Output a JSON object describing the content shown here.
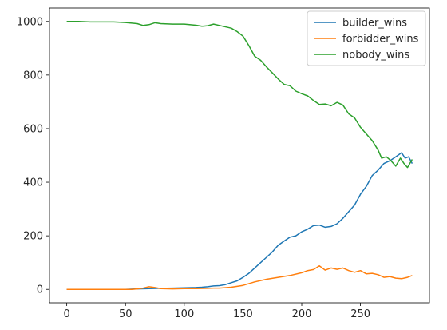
{
  "chart_data": {
    "type": "line",
    "title": "",
    "xlabel": "",
    "ylabel": "",
    "xlim": [
      -14.7,
      308.7
    ],
    "ylim": [
      -50,
      1050
    ],
    "xticks": [
      0,
      50,
      100,
      150,
      200,
      250
    ],
    "yticks": [
      0,
      200,
      400,
      600,
      800,
      1000
    ],
    "legend_position": "top-right",
    "grid": false,
    "series": [
      {
        "name": "builder_wins",
        "color": "#1f77b4",
        "x": [
          0,
          10,
          20,
          30,
          40,
          50,
          60,
          70,
          80,
          90,
          100,
          110,
          115,
          120,
          125,
          130,
          135,
          140,
          145,
          150,
          155,
          160,
          165,
          170,
          175,
          180,
          185,
          190,
          195,
          200,
          205,
          210,
          215,
          220,
          225,
          230,
          235,
          240,
          245,
          250,
          255,
          260,
          265,
          270,
          275,
          280,
          285,
          288,
          291,
          294
        ],
        "y": [
          0,
          0,
          0,
          0,
          0,
          0,
          2,
          3,
          4,
          5,
          6,
          7,
          8,
          10,
          13,
          14,
          18,
          25,
          32,
          45,
          60,
          80,
          100,
          120,
          140,
          165,
          180,
          195,
          200,
          215,
          225,
          238,
          240,
          232,
          235,
          245,
          265,
          290,
          315,
          355,
          385,
          425,
          445,
          470,
          480,
          495,
          510,
          490,
          495,
          470
        ]
      },
      {
        "name": "forbidder_wins",
        "color": "#ff7f0e",
        "x": [
          0,
          20,
          40,
          55,
          60,
          65,
          70,
          75,
          80,
          90,
          100,
          110,
          120,
          125,
          130,
          140,
          150,
          160,
          170,
          180,
          190,
          200,
          205,
          210,
          215,
          220,
          225,
          230,
          235,
          240,
          245,
          250,
          255,
          260,
          265,
          270,
          275,
          280,
          285,
          290,
          294
        ],
        "y": [
          0,
          0,
          0,
          0,
          2,
          5,
          10,
          7,
          3,
          2,
          3,
          3,
          4,
          5,
          5,
          8,
          15,
          28,
          38,
          45,
          52,
          62,
          70,
          74,
          88,
          72,
          80,
          75,
          80,
          70,
          64,
          70,
          58,
          60,
          55,
          45,
          48,
          42,
          40,
          45,
          52
        ]
      },
      {
        "name": "nobody_wins",
        "color": "#2ca02c",
        "x": [
          0,
          10,
          20,
          30,
          40,
          50,
          60,
          65,
          70,
          75,
          80,
          90,
          100,
          110,
          115,
          120,
          125,
          130,
          140,
          145,
          150,
          155,
          160,
          165,
          170,
          175,
          180,
          185,
          190,
          195,
          200,
          205,
          210,
          215,
          220,
          225,
          230,
          235,
          240,
          245,
          250,
          255,
          260,
          265,
          268,
          272,
          276,
          280,
          284,
          287,
          290,
          294
        ],
        "y": [
          1000,
          1000,
          998,
          998,
          998,
          996,
          992,
          985,
          988,
          995,
          992,
          990,
          990,
          986,
          982,
          984,
          990,
          985,
          975,
          962,
          945,
          910,
          870,
          855,
          830,
          808,
          785,
          765,
          760,
          740,
          730,
          722,
          705,
          690,
          692,
          685,
          698,
          688,
          655,
          640,
          605,
          580,
          555,
          520,
          490,
          495,
          480,
          460,
          490,
          470,
          455,
          485
        ]
      }
    ]
  }
}
